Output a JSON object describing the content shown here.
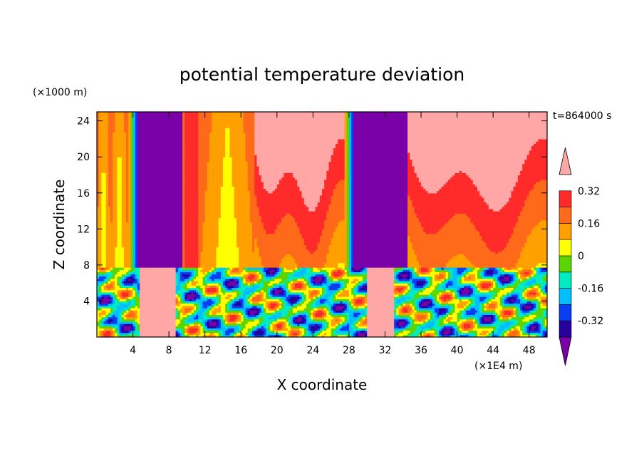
{
  "chart_data": {
    "type": "heatmap",
    "title": "potential temperature deviation",
    "xlabel": "X coordinate",
    "ylabel": "Z coordinate",
    "x_unit": "(×1E4 m)",
    "y_unit": "(×1000 m)",
    "time_label": "t=864000 s",
    "xlim": [
      0,
      50
    ],
    "ylim": [
      0,
      25
    ],
    "x_ticks": [
      4,
      8,
      12,
      16,
      20,
      24,
      28,
      32,
      36,
      40,
      44,
      48
    ],
    "y_ticks": [
      4,
      8,
      12,
      16,
      20,
      24
    ],
    "colorbar": {
      "levels": [
        -0.4,
        -0.32,
        -0.24,
        -0.16,
        -0.08,
        0,
        0.08,
        0.16,
        0.24,
        0.32,
        0.4
      ],
      "labels": [
        "0.32",
        "0.16",
        "0",
        "-0.16",
        "-0.32"
      ],
      "label_values": [
        0.32,
        0.16,
        0,
        -0.16,
        -0.32
      ],
      "colors": [
        "#7a00a8",
        "#28009c",
        "#0a3cf0",
        "#00bfff",
        "#00ecc0",
        "#5cd400",
        "#ffff00",
        "#ffa000",
        "#ff6a1a",
        "#ff2a2a",
        "#ffa6a6"
      ],
      "extend": "both"
    },
    "columns": [
      {
        "x0": 0,
        "x1": 1.5,
        "pattern": "yellow-with-green-core",
        "upper_value": 0.12
      },
      {
        "x0": 1.5,
        "x1": 3.5,
        "pattern": "yellow-with-green-core",
        "upper_value": 0.08
      },
      {
        "x0": 3.5,
        "x1": 4.5,
        "pattern": "gradient-to-blue",
        "upper_value": -0.1
      },
      {
        "x0": 4.5,
        "x1": 9.5,
        "pattern": "purple",
        "upper_value": -0.45
      },
      {
        "x0": 9.5,
        "x1": 11.5,
        "pattern": "red-orange",
        "upper_value": 0.3
      },
      {
        "x0": 11.5,
        "x1": 17.5,
        "pattern": "yellow-with-green-core",
        "upper_value": 0.1
      },
      {
        "x0": 17.5,
        "x1": 27.5,
        "pattern": "pink-dome",
        "upper_value": 0.42
      },
      {
        "x0": 27.5,
        "x1": 28.5,
        "pattern": "gradient-to-blue",
        "upper_value": -0.1
      },
      {
        "x0": 28.5,
        "x1": 34.5,
        "pattern": "purple",
        "upper_value": -0.45
      },
      {
        "x0": 34.5,
        "x1": 50,
        "pattern": "pink-dome",
        "upper_value": 0.42
      }
    ]
  }
}
